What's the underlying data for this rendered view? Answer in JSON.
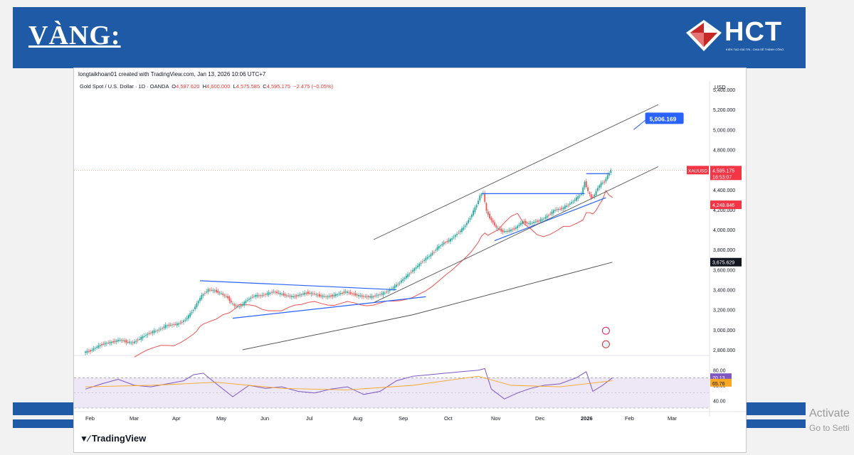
{
  "slide": {
    "title": "VÀNG:"
  },
  "logo": {
    "text": "HCT",
    "tagline": "KIẾN TẠO GIÁ TRỊ - CHIA SẺ THÀNH CÔNG"
  },
  "watermark": {
    "line1": "Activate",
    "line2": "Go to Setti"
  },
  "tradingview": {
    "caption": "longtaikhoan01 created with TradingView.com, Jan 13, 2026 10:06 UTC+7",
    "symbol_line": "Gold Spot / U.S. Dollar · 1D · OANDA",
    "o_label": "O",
    "o": "4,597.620",
    "h_label": "H",
    "h": "4,600.000",
    "l_label": "L",
    "l": "4,575.585",
    "c_label": "C",
    "c": "4,595.175",
    "change": "−2.475 (−0.05%)",
    "currency": "USD",
    "brand": "TradingView"
  },
  "chart_data": {
    "type": "candlestick",
    "symbol": "XAUUSD",
    "x_ticks": [
      "Feb",
      "Mar",
      "Apr",
      "May",
      "Jun",
      "Jul",
      "Aug",
      "Sep",
      "Oct",
      "Nov",
      "Dec",
      "2026",
      "Feb",
      "Mar"
    ],
    "price_axis": {
      "ticks": [
        "5,400.000",
        "5,200.000",
        "5,000.000",
        "4,800.000",
        "4,600.000",
        "4,400.000",
        "4,200.000",
        "4,000.000",
        "3,800.000",
        "3,600.000",
        "3,400.000",
        "3,200.000",
        "3,000.000",
        "2,800.000"
      ],
      "ylim": [
        2800,
        5400
      ]
    },
    "labels": {
      "current": "4,595.175",
      "countdown": "18:53:07",
      "ma_short": "4,248.846",
      "ma_long": "3,675.629",
      "target": "5,006.169"
    },
    "price_path": [
      [
        0,
        2775
      ],
      [
        4,
        2790
      ],
      [
        8,
        2830
      ],
      [
        12,
        2860
      ],
      [
        18,
        2880
      ],
      [
        22,
        2900
      ],
      [
        26,
        2880
      ],
      [
        30,
        2870
      ],
      [
        34,
        2910
      ],
      [
        38,
        2950
      ],
      [
        42,
        2980
      ],
      [
        46,
        3000
      ],
      [
        50,
        3040
      ],
      [
        54,
        3050
      ],
      [
        58,
        3060
      ],
      [
        62,
        3100
      ],
      [
        66,
        3180
      ],
      [
        68,
        3230
      ],
      [
        70,
        3290
      ],
      [
        72,
        3340
      ],
      [
        76,
        3400
      ],
      [
        80,
        3390
      ],
      [
        84,
        3360
      ],
      [
        88,
        3320
      ],
      [
        90,
        3270
      ],
      [
        92,
        3240
      ],
      [
        94,
        3230
      ],
      [
        96,
        3240
      ],
      [
        100,
        3300
      ],
      [
        104,
        3340
      ],
      [
        108,
        3340
      ],
      [
        112,
        3360
      ],
      [
        116,
        3380
      ],
      [
        120,
        3360
      ],
      [
        124,
        3340
      ],
      [
        128,
        3330
      ],
      [
        132,
        3350
      ],
      [
        136,
        3370
      ],
      [
        140,
        3360
      ],
      [
        144,
        3340
      ],
      [
        148,
        3330
      ],
      [
        152,
        3340
      ],
      [
        156,
        3360
      ],
      [
        160,
        3380
      ],
      [
        164,
        3360
      ],
      [
        168,
        3340
      ],
      [
        172,
        3330
      ],
      [
        176,
        3330
      ],
      [
        180,
        3350
      ],
      [
        184,
        3370
      ],
      [
        188,
        3410
      ],
      [
        192,
        3460
      ],
      [
        196,
        3520
      ],
      [
        200,
        3580
      ],
      [
        204,
        3640
      ],
      [
        208,
        3700
      ],
      [
        212,
        3750
      ],
      [
        216,
        3820
      ],
      [
        220,
        3870
      ],
      [
        224,
        3900
      ],
      [
        228,
        3960
      ],
      [
        232,
        4020
      ],
      [
        236,
        4120
      ],
      [
        240,
        4250
      ],
      [
        242,
        4340
      ],
      [
        244,
        4370
      ],
      [
        246,
        4180
      ],
      [
        248,
        4120
      ],
      [
        252,
        4020
      ],
      [
        256,
        3980
      ],
      [
        260,
        3990
      ],
      [
        264,
        4020
      ],
      [
        268,
        4080
      ],
      [
        272,
        4060
      ],
      [
        276,
        4080
      ],
      [
        280,
        4100
      ],
      [
        284,
        4150
      ],
      [
        288,
        4200
      ],
      [
        292,
        4210
      ],
      [
        296,
        4250
      ],
      [
        300,
        4300
      ],
      [
        304,
        4360
      ],
      [
        306,
        4480
      ],
      [
        308,
        4380
      ],
      [
        310,
        4320
      ],
      [
        312,
        4350
      ],
      [
        314,
        4420
      ],
      [
        316,
        4460
      ],
      [
        318,
        4480
      ],
      [
        320,
        4540
      ],
      [
        322,
        4595
      ]
    ],
    "rsi": {
      "ticks": [
        "80.00",
        "60.00",
        "40.00"
      ],
      "ylim": [
        30,
        90
      ],
      "band": [
        70,
        30
      ],
      "value": "70.13",
      "ma_value": "65.76",
      "path": [
        [
          0,
          55
        ],
        [
          10,
          62
        ],
        [
          20,
          68
        ],
        [
          30,
          60
        ],
        [
          40,
          58
        ],
        [
          50,
          62
        ],
        [
          60,
          66
        ],
        [
          66,
          74
        ],
        [
          72,
          76
        ],
        [
          80,
          62
        ],
        [
          90,
          45
        ],
        [
          100,
          60
        ],
        [
          110,
          56
        ],
        [
          120,
          58
        ],
        [
          130,
          52
        ],
        [
          140,
          50
        ],
        [
          150,
          55
        ],
        [
          160,
          58
        ],
        [
          170,
          48
        ],
        [
          180,
          52
        ],
        [
          190,
          66
        ],
        [
          200,
          72
        ],
        [
          210,
          74
        ],
        [
          220,
          76
        ],
        [
          230,
          78
        ],
        [
          240,
          80
        ],
        [
          244,
          82
        ],
        [
          248,
          55
        ],
        [
          256,
          42
        ],
        [
          264,
          50
        ],
        [
          272,
          56
        ],
        [
          280,
          60
        ],
        [
          290,
          62
        ],
        [
          300,
          70
        ],
        [
          306,
          78
        ],
        [
          310,
          52
        ],
        [
          316,
          60
        ],
        [
          322,
          70
        ]
      ],
      "ma_path": [
        [
          0,
          58
        ],
        [
          40,
          60
        ],
        [
          80,
          64
        ],
        [
          120,
          56
        ],
        [
          160,
          54
        ],
        [
          200,
          60
        ],
        [
          240,
          72
        ],
        [
          260,
          60
        ],
        [
          290,
          58
        ],
        [
          322,
          66
        ]
      ]
    }
  }
}
